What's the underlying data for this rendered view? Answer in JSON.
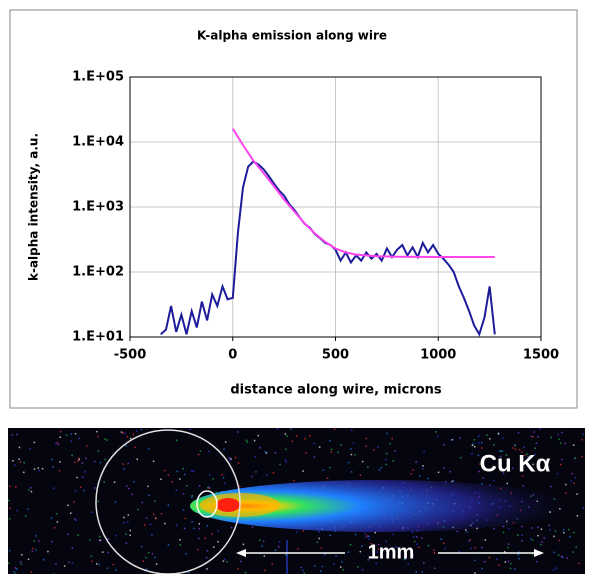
{
  "chart_data": {
    "type": "line",
    "title": "K-alpha emission along wire",
    "x_label": "distance along wire, microns",
    "y_label": "k-alpha intensity, a.u.",
    "xlim": [
      -500,
      1500
    ],
    "xticks": [
      -500,
      0,
      500,
      1000,
      1500
    ],
    "ylim": [
      10,
      100000
    ],
    "log_y": true,
    "yticks": [
      {
        "value": 10,
        "label": "1.E+01"
      },
      {
        "value": 100,
        "label": "1.E+02"
      },
      {
        "value": 1000,
        "label": "1.E+03"
      },
      {
        "value": 10000,
        "label": "1.E+04"
      },
      {
        "value": 100000,
        "label": "1.E+05"
      }
    ],
    "grid": true,
    "series": [
      {
        "color": "#1c1c9a",
        "x": [
          -350,
          -325,
          -300,
          -275,
          -250,
          -225,
          -200,
          -175,
          -150,
          -125,
          -100,
          -75,
          -50,
          -25,
          0,
          25,
          50,
          75,
          100,
          125,
          150,
          175,
          200,
          225,
          250,
          275,
          300,
          325,
          350,
          375,
          400,
          425,
          450,
          475,
          500,
          525,
          550,
          575,
          600,
          625,
          650,
          675,
          700,
          725,
          750,
          775,
          800,
          825,
          850,
          875,
          900,
          925,
          950,
          975,
          1000,
          1025,
          1050,
          1075,
          1100,
          1125,
          1150,
          1175,
          1200,
          1225,
          1250,
          1275
        ],
        "values": [
          11,
          13,
          30,
          12,
          22,
          11,
          25,
          14,
          35,
          18,
          45,
          30,
          60,
          38,
          40,
          400,
          2000,
          4200,
          5000,
          4500,
          3800,
          3000,
          2300,
          1800,
          1500,
          1100,
          900,
          700,
          550,
          480,
          380,
          330,
          280,
          260,
          220,
          150,
          200,
          140,
          180,
          150,
          200,
          160,
          190,
          150,
          230,
          170,
          220,
          260,
          180,
          240,
          170,
          280,
          200,
          260,
          190,
          160,
          130,
          100,
          60,
          40,
          25,
          15,
          11,
          20,
          60,
          11
        ]
      },
      {
        "color": "#ff44ee",
        "x": [
          0,
          50,
          100,
          150,
          200,
          250,
          300,
          350,
          400,
          450,
          500,
          550,
          600,
          700,
          800,
          1000,
          1275
        ],
        "values": [
          16000,
          9000,
          5200,
          3300,
          2100,
          1300,
          850,
          560,
          390,
          290,
          230,
          200,
          185,
          175,
          172,
          170,
          170
        ]
      }
    ]
  },
  "image_panel": {
    "label": "Cu Kα",
    "scale_label": "1mm"
  }
}
